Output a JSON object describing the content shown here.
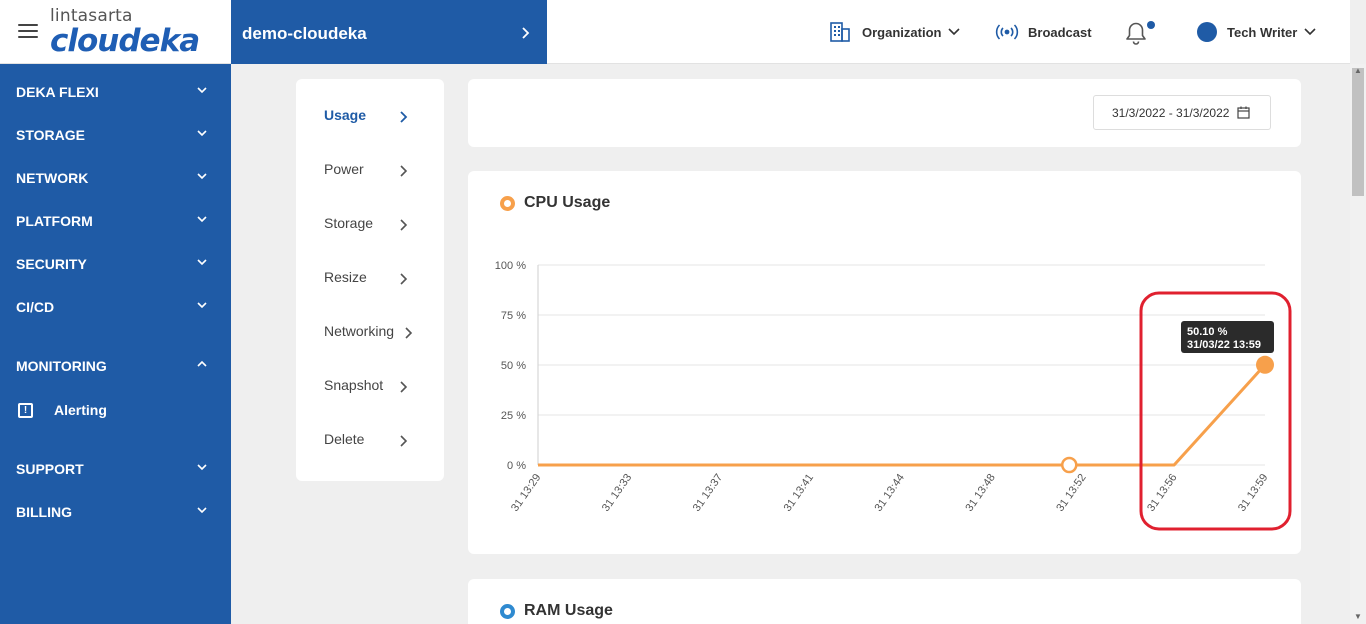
{
  "brand": {
    "top": "lintasarta",
    "main": "cloudeka"
  },
  "project": {
    "name": "demo-cloudeka"
  },
  "topnav": {
    "organization": "Organization",
    "broadcast": "Broadcast",
    "user": "Tech Writer"
  },
  "sidebar": {
    "items": [
      "DEKA FLEXI",
      "STORAGE",
      "NETWORK",
      "PLATFORM",
      "SECURITY",
      "CI/CD",
      "MONITORING",
      "SUPPORT",
      "BILLING"
    ],
    "sub_item": "Alerting"
  },
  "submenu": [
    "Usage",
    "Power",
    "Storage",
    "Resize",
    "Networking",
    "Snapshot",
    "Delete"
  ],
  "date_range": "31/3/2022 - 31/3/2022",
  "cpu": {
    "title": "CPU Usage"
  },
  "ram": {
    "title": "RAM Usage"
  },
  "tooltip": {
    "value": "50.10 %",
    "time": "31/03/22 13:59"
  },
  "colors": {
    "brand_blue": "#1f5ba6",
    "series_orange": "#f7a04b",
    "highlight_red": "#e0202f",
    "ram_blue": "#2f8ad0"
  },
  "chart_data": {
    "type": "line",
    "title": "CPU Usage",
    "ylim": [
      0,
      100
    ],
    "yticks": [
      "100 %",
      "75 %",
      "50 %",
      "25 %",
      "0 %"
    ],
    "categories": [
      "31 13:29",
      "31 13:33",
      "31 13:37",
      "31 13:41",
      "31 13:44",
      "31 13:48",
      "31 13:52",
      "31 13:56",
      "31 13:59"
    ],
    "series": [
      {
        "values": [
          0,
          0,
          0,
          0,
          0,
          0,
          0,
          0,
          50.1
        ]
      }
    ],
    "grid": true
  }
}
